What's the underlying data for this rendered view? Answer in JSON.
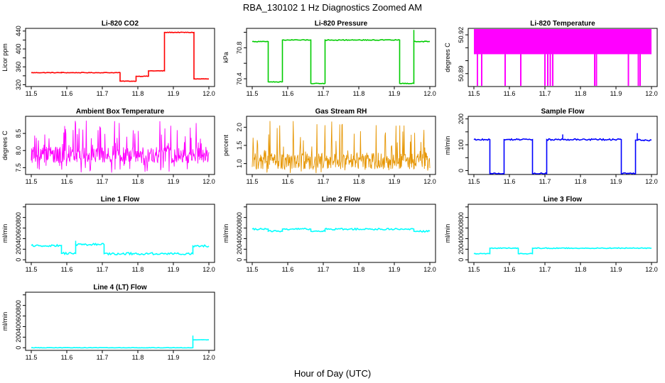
{
  "figure": {
    "title": "RBA_130102  1 Hz Diagnostics Zoomed AM",
    "xlabel": "Hour of Day (UTC)"
  },
  "chart_data": [
    {
      "type": "line",
      "title": "Li-820 CO2",
      "ylabel": "Licor ppm",
      "color": "#ff0000",
      "xlim": [
        11.5,
        12.0
      ],
      "xticks": [
        "11.5",
        "11.6",
        "11.7",
        "11.8",
        "11.9",
        "12.0"
      ],
      "ylim": [
        316,
        446
      ],
      "yticks": [
        320,
        340,
        360,
        380,
        400,
        420,
        440
      ],
      "ytick_labels": [
        "320",
        "",
        "360",
        "",
        "400",
        "",
        "440"
      ],
      "noise": 0.6,
      "spikes": [
        [
          11.585,
          349
        ],
        [
          11.715,
          348
        ]
      ],
      "steps": [
        [
          11.5,
          347
        ],
        [
          11.75,
          328
        ],
        [
          11.795,
          339
        ],
        [
          11.83,
          351
        ],
        [
          11.875,
          437
        ],
        [
          11.958,
          333
        ],
        [
          12.0,
          333
        ]
      ]
    },
    {
      "type": "line",
      "title": "Li-820 Pressure",
      "ylabel": "kPa",
      "color": "#00cc00",
      "xlim": [
        11.5,
        12.0
      ],
      "xticks": [
        "11.5",
        "11.6",
        "11.7",
        "11.8",
        "11.9",
        "12.0"
      ],
      "ylim": [
        70.3,
        71.05
      ],
      "yticks": [
        70.4,
        70.6,
        70.8,
        71.0
      ],
      "ytick_labels": [
        "70.4",
        "",
        "70.8",
        ""
      ],
      "noise": 0.005,
      "spikes": [
        [
          11.955,
          71.03
        ]
      ],
      "steps": [
        [
          11.5,
          70.88
        ],
        [
          11.545,
          70.36
        ],
        [
          11.585,
          70.9
        ],
        [
          11.665,
          70.34
        ],
        [
          11.705,
          70.9
        ],
        [
          11.915,
          70.34
        ],
        [
          11.955,
          70.88
        ],
        [
          12.0,
          70.86
        ]
      ]
    },
    {
      "type": "band",
      "title": "Li-820 Temperature",
      "ylabel": "degrees C",
      "color": "#ff00ff",
      "xlim": [
        11.5,
        12.0
      ],
      "xticks": [
        "11.5",
        "11.6",
        "11.7",
        "11.8",
        "11.9",
        "12.0"
      ],
      "ylim": [
        50.88,
        50.925
      ],
      "yticks": [
        50.89,
        50.9,
        50.91,
        50.92
      ],
      "ytick_labels": [
        "50.89",
        "",
        "",
        "50.92"
      ],
      "band": [
        50.905,
        50.927
      ],
      "dips": [
        11.51,
        11.522,
        11.588,
        11.632,
        11.7,
        11.708,
        11.715,
        11.722,
        11.84,
        11.845,
        11.935,
        11.963,
        11.968
      ]
    },
    {
      "type": "noise",
      "title": "Ambient Box Temperature",
      "ylabel": "degrees C",
      "color": "#ff00ff",
      "xlim": [
        11.5,
        12.0
      ],
      "xticks": [
        "11.5",
        "11.6",
        "11.7",
        "11.8",
        "11.9",
        "12.0"
      ],
      "ylim": [
        7.3,
        9.0
      ],
      "yticks": [
        7.5,
        8.0,
        8.5
      ],
      "ytick_labels": [
        "7.5",
        "8.0",
        "8.5"
      ],
      "base": 7.8,
      "hi": 8.9,
      "lo": 7.35
    },
    {
      "type": "noise",
      "title": "Gas Stream RH",
      "ylabel": "percent",
      "color": "#e69500",
      "xlim": [
        11.5,
        12.0
      ],
      "xticks": [
        "11.5",
        "11.6",
        "11.7",
        "11.8",
        "11.9",
        "12.0"
      ],
      "ylim": [
        0.7,
        2.3
      ],
      "yticks": [
        1.0,
        1.5,
        2.0
      ],
      "ytick_labels": [
        "1.0",
        "1.5",
        "2.0"
      ],
      "base": 1.0,
      "hi": 2.2,
      "lo": 0.72
    },
    {
      "type": "line",
      "title": "Sample Flow",
      "ylabel": "ml/min",
      "color": "#0000ff",
      "xlim": [
        11.5,
        12.0
      ],
      "xticks": [
        "11.5",
        "11.6",
        "11.7",
        "11.8",
        "11.9",
        "12.0"
      ],
      "ylim": [
        -15,
        210
      ],
      "yticks": [
        0,
        50,
        100,
        150,
        200
      ],
      "ytick_labels": [
        "0",
        "",
        "100",
        "",
        "200"
      ],
      "noise": 3,
      "spikes": [
        [
          11.75,
          140
        ],
        [
          11.96,
          145
        ]
      ],
      "steps": [
        [
          11.5,
          120
        ],
        [
          11.545,
          -12
        ],
        [
          11.585,
          120
        ],
        [
          11.665,
          -12
        ],
        [
          11.705,
          120
        ],
        [
          11.915,
          -12
        ],
        [
          11.955,
          118
        ],
        [
          12.0,
          112
        ]
      ]
    },
    {
      "type": "line",
      "title": "Line 1 Flow",
      "ylabel": "ml/min",
      "color": "#00ffff",
      "xlim": [
        11.5,
        12.0
      ],
      "xticks": [
        "11.5",
        "11.6",
        "11.7",
        "11.8",
        "11.9",
        "12.0"
      ],
      "ylim": [
        -50,
        1050
      ],
      "yticks": [
        0,
        200,
        400,
        600,
        800,
        1000
      ],
      "ytick_labels": [
        "0",
        "200",
        "400",
        "600",
        "800",
        ""
      ],
      "noise": 20,
      "spikes": [
        [
          11.625,
          360
        ]
      ],
      "steps": [
        [
          11.5,
          270
        ],
        [
          11.585,
          120
        ],
        [
          11.625,
          290
        ],
        [
          11.705,
          115
        ],
        [
          11.955,
          260
        ],
        [
          12.0,
          260
        ]
      ]
    },
    {
      "type": "line",
      "title": "Line 2 Flow",
      "ylabel": "ml/min",
      "color": "#00ffff",
      "xlim": [
        11.5,
        12.0
      ],
      "xticks": [
        "11.5",
        "11.6",
        "11.7",
        "11.8",
        "11.9",
        "12.0"
      ],
      "ylim": [
        -50,
        1050
      ],
      "yticks": [
        0,
        200,
        400,
        600,
        800,
        1000
      ],
      "ytick_labels": [
        "0",
        "200",
        "400",
        "600",
        "800",
        ""
      ],
      "noise": 15,
      "spikes": [],
      "steps": [
        [
          11.5,
          580
        ],
        [
          11.545,
          540
        ],
        [
          11.585,
          580
        ],
        [
          11.665,
          540
        ],
        [
          11.705,
          580
        ],
        [
          11.955,
          540
        ],
        [
          12.0,
          540
        ]
      ]
    },
    {
      "type": "line",
      "title": "Line 3 Flow",
      "ylabel": "ml/min",
      "color": "#00ffff",
      "xlim": [
        11.5,
        12.0
      ],
      "xticks": [
        "11.5",
        "11.6",
        "11.7",
        "11.8",
        "11.9",
        "12.0"
      ],
      "ylim": [
        -50,
        1050
      ],
      "yticks": [
        0,
        200,
        400,
        600,
        800,
        1000
      ],
      "ytick_labels": [
        "0",
        "200",
        "400",
        "600",
        "800",
        ""
      ],
      "noise": 8,
      "spikes": [],
      "steps": [
        [
          11.5,
          115
        ],
        [
          11.545,
          220
        ],
        [
          11.625,
          115
        ],
        [
          11.665,
          220
        ],
        [
          12.0,
          210
        ]
      ]
    },
    {
      "type": "line",
      "title": "Line 4 (LT) Flow",
      "ylabel": "ml/min",
      "color": "#00ffff",
      "xlim": [
        11.5,
        12.0
      ],
      "xticks": [
        "11.5",
        "11.6",
        "11.7",
        "11.8",
        "11.9",
        "12.0"
      ],
      "ylim": [
        -50,
        1050
      ],
      "yticks": [
        0,
        200,
        400,
        600,
        800,
        1000
      ],
      "ytick_labels": [
        "0",
        "200",
        "400",
        "600",
        "800",
        ""
      ],
      "noise": 3,
      "spikes": [
        [
          11.955,
          230
        ]
      ],
      "steps": [
        [
          11.5,
          0
        ],
        [
          11.955,
          150
        ],
        [
          12.0,
          150
        ]
      ]
    }
  ]
}
